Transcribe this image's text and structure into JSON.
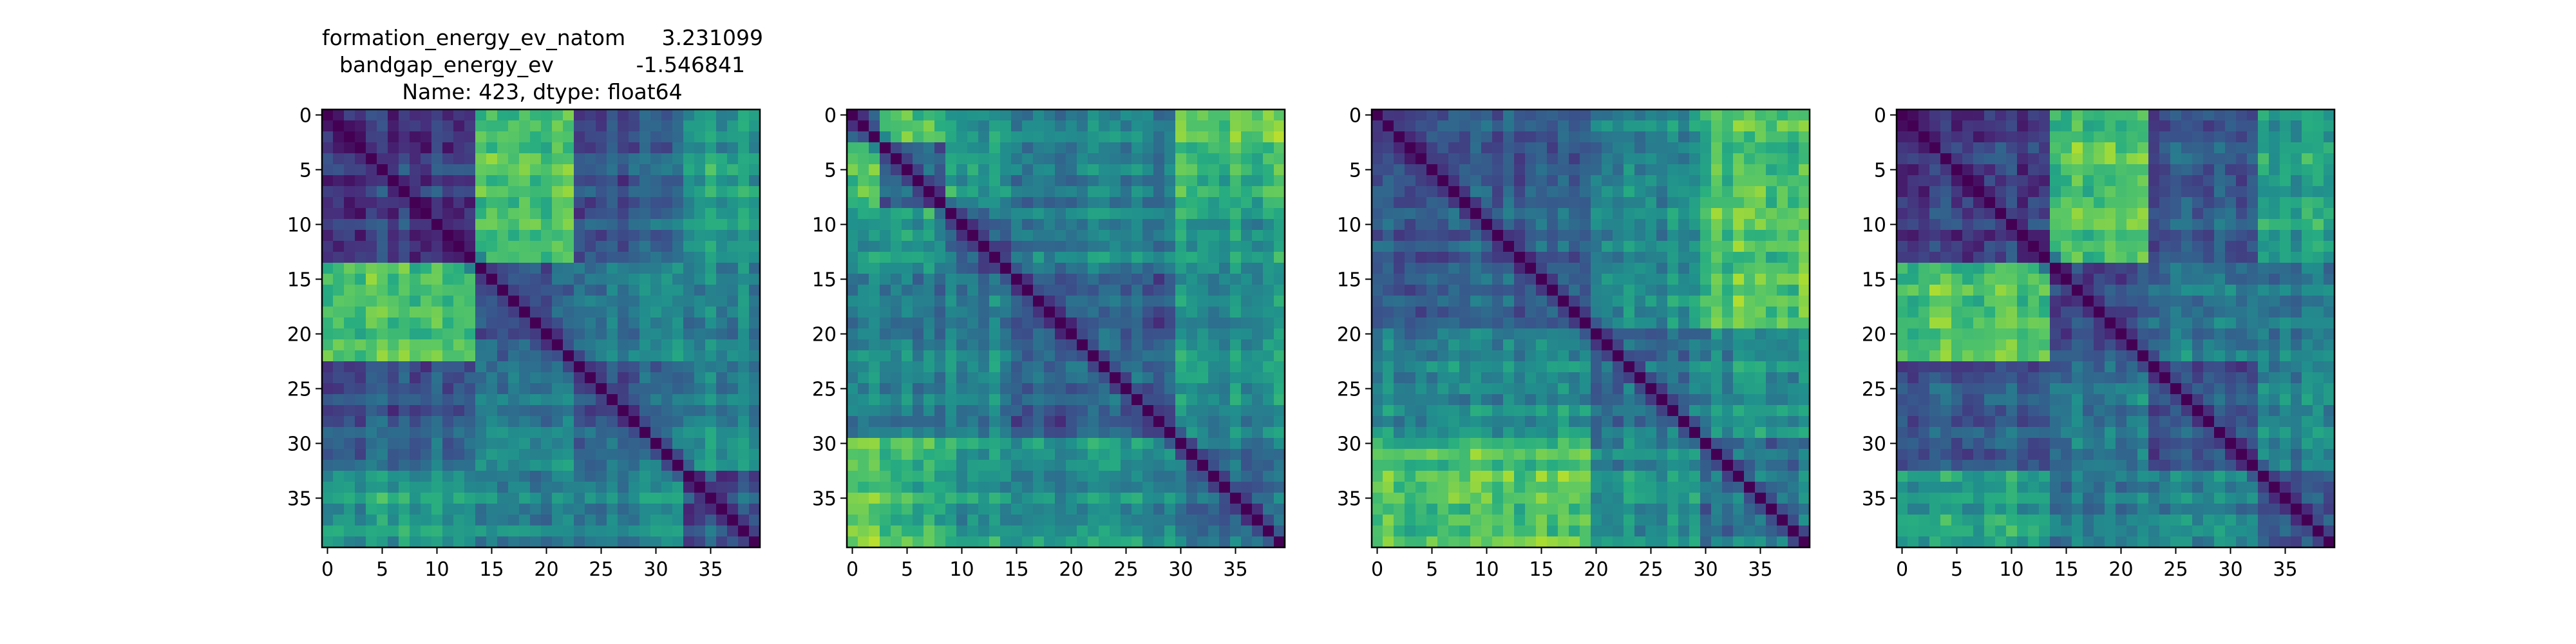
{
  "figure": {
    "title": {
      "lines": [
        {
          "key": "formation_energy_ev_natom",
          "value": "3.231099"
        },
        {
          "key": "bandgap_energy_ev",
          "value": "-1.546841"
        }
      ],
      "name_line": "Name: 423, dtype: float64"
    }
  },
  "chart_data": [
    {
      "type": "heatmap",
      "colormap": "viridis",
      "size": 40,
      "x_ticks": [
        0,
        5,
        10,
        15,
        20,
        25,
        30,
        35
      ],
      "y_ticks": [
        0,
        5,
        10,
        15,
        20,
        25,
        30,
        35
      ],
      "x_tick_labels": [
        "0",
        "5",
        "10",
        "15",
        "20",
        "25",
        "30",
        "35"
      ],
      "y_tick_labels": [
        "0",
        "5",
        "10",
        "15",
        "20",
        "25",
        "30",
        "35"
      ],
      "blocks": [
        [
          0,
          14
        ],
        [
          14,
          23
        ],
        [
          23,
          33
        ],
        [
          33,
          40
        ]
      ],
      "block_levels": [
        [
          0.2,
          0.72,
          0.3,
          0.58
        ],
        [
          0.72,
          0.28,
          0.42,
          0.45
        ],
        [
          0.3,
          0.42,
          0.32,
          0.48
        ],
        [
          0.58,
          0.45,
          0.48,
          0.3
        ]
      ],
      "seed": 11
    },
    {
      "type": "heatmap",
      "colormap": "viridis",
      "size": 40,
      "x_ticks": [
        0,
        5,
        10,
        15,
        20,
        25,
        30,
        35
      ],
      "y_ticks": [
        0,
        5,
        10,
        15,
        20,
        25,
        30,
        35
      ],
      "x_tick_labels": [
        "0",
        "5",
        "10",
        "15",
        "20",
        "25",
        "30",
        "35"
      ],
      "y_tick_labels": [
        "0",
        "5",
        "10",
        "15",
        "20",
        "25",
        "30",
        "35"
      ],
      "blocks": [
        [
          0,
          3
        ],
        [
          3,
          9
        ],
        [
          9,
          15
        ],
        [
          15,
          30
        ],
        [
          30,
          40
        ]
      ],
      "block_levels": [
        [
          0.35,
          0.72,
          0.55,
          0.48,
          0.78
        ],
        [
          0.72,
          0.3,
          0.55,
          0.42,
          0.65
        ],
        [
          0.55,
          0.55,
          0.32,
          0.45,
          0.55
        ],
        [
          0.48,
          0.42,
          0.45,
          0.32,
          0.5
        ],
        [
          0.78,
          0.65,
          0.55,
          0.5,
          0.35
        ]
      ],
      "seed": 23
    },
    {
      "type": "heatmap",
      "colormap": "viridis",
      "size": 40,
      "x_ticks": [
        0,
        5,
        10,
        15,
        20,
        25,
        30,
        35
      ],
      "y_ticks": [
        0,
        5,
        10,
        15,
        20,
        25,
        30,
        35
      ],
      "x_tick_labels": [
        "0",
        "5",
        "10",
        "15",
        "20",
        "25",
        "30",
        "35"
      ],
      "y_tick_labels": [
        "0",
        "5",
        "10",
        "15",
        "20",
        "25",
        "30",
        "35"
      ],
      "blocks": [
        [
          0,
          20
        ],
        [
          20,
          30
        ],
        [
          30,
          40
        ]
      ],
      "block_levels": [
        [
          0.32,
          0.48,
          0.72
        ],
        [
          0.48,
          0.35,
          0.5
        ],
        [
          0.72,
          0.5,
          0.38
        ]
      ],
      "seed": 37
    },
    {
      "type": "heatmap",
      "colormap": "viridis",
      "size": 40,
      "x_ticks": [
        0,
        5,
        10,
        15,
        20,
        25,
        30,
        35
      ],
      "y_ticks": [
        0,
        5,
        10,
        15,
        20,
        25,
        30,
        35
      ],
      "x_tick_labels": [
        "0",
        "5",
        "10",
        "15",
        "20",
        "25",
        "30",
        "35"
      ],
      "y_tick_labels": [
        "0",
        "5",
        "10",
        "15",
        "20",
        "25",
        "30",
        "35"
      ],
      "blocks": [
        [
          0,
          14
        ],
        [
          14,
          23
        ],
        [
          23,
          33
        ],
        [
          33,
          40
        ]
      ],
      "block_levels": [
        [
          0.22,
          0.74,
          0.3,
          0.6
        ],
        [
          0.74,
          0.28,
          0.42,
          0.45
        ],
        [
          0.3,
          0.42,
          0.3,
          0.48
        ],
        [
          0.6,
          0.45,
          0.48,
          0.3
        ]
      ],
      "seed": 53
    }
  ]
}
